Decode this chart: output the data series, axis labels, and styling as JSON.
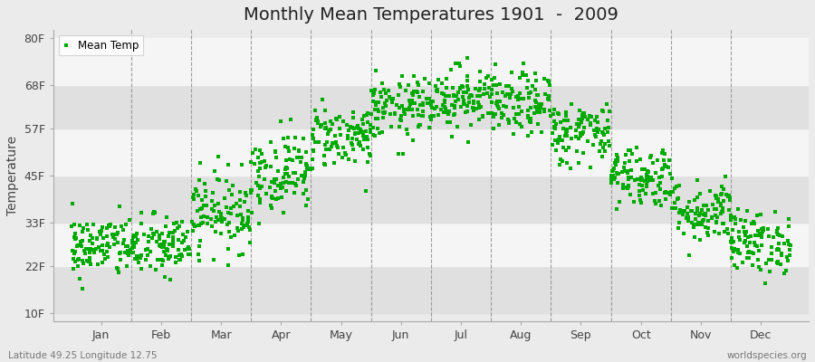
{
  "title": "Monthly Mean Temperatures 1901  -  2009",
  "ylabel": "Temperature",
  "bottom_left": "Latitude 49.25 Longitude 12.75",
  "bottom_right": "worldspecies.org",
  "yticks": [
    10,
    22,
    33,
    45,
    57,
    68,
    80
  ],
  "ytick_labels": [
    "10F",
    "22F",
    "33F",
    "45F",
    "57F",
    "68F",
    "80F"
  ],
  "ylim": [
    8,
    82
  ],
  "months": [
    "Jan",
    "Feb",
    "Mar",
    "Apr",
    "May",
    "Jun",
    "Jul",
    "Aug",
    "Sep",
    "Oct",
    "Nov",
    "Dec"
  ],
  "dot_color": "#00AA00",
  "background_color": "#ebebeb",
  "plot_bg_color": "#ebebeb",
  "band_color_light": "#f5f5f5",
  "band_color_dark": "#e0e0e0",
  "n_years": 109,
  "seed": 42,
  "monthly_mean_F": [
    27,
    27,
    36,
    46,
    55,
    62,
    65,
    63,
    56,
    45,
    36,
    28
  ],
  "monthly_std_F": [
    4,
    4,
    5,
    5,
    4,
    4,
    4,
    4,
    4,
    4,
    4,
    4
  ],
  "title_fontsize": 14,
  "label_fontsize": 9,
  "ylabel_fontsize": 10
}
